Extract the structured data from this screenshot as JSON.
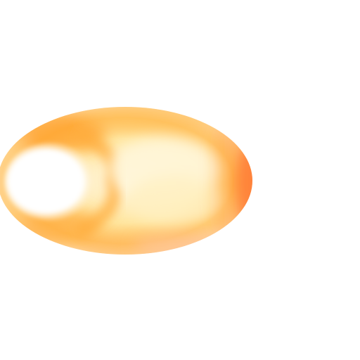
{
  "scene": {
    "background_color": "#ffffff",
    "object": "glowing-orange-ellipse",
    "colors": {
      "hot_core": "#ffffff",
      "warm_yellow": "#fff2c8",
      "light_yellow": "#fff8e6",
      "orange": "#ffb347",
      "deep_orange": "#ff7a1a",
      "red_orange": "#ff5a1f"
    }
  }
}
